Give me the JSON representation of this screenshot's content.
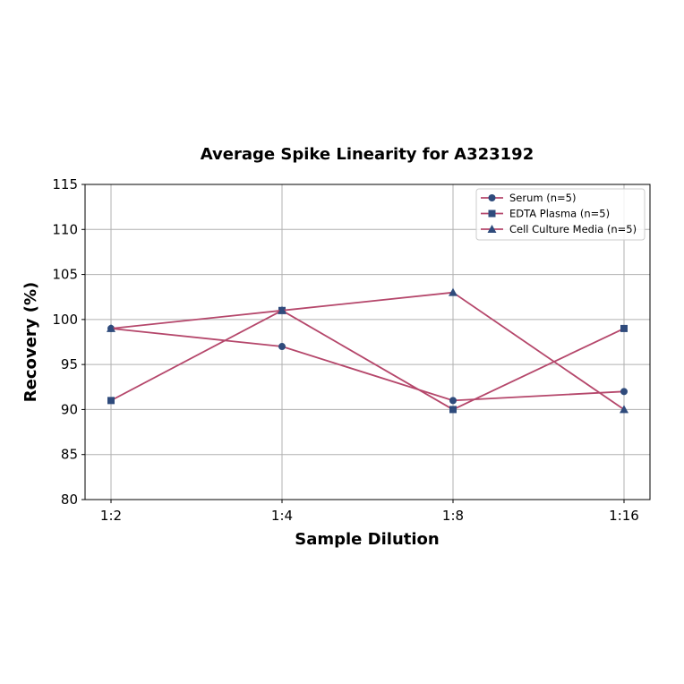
{
  "chart_data": {
    "type": "line",
    "title": "Average Spike Linearity for A323192",
    "xlabel": "Sample Dilution",
    "ylabel": "Recovery (%)",
    "categories": [
      "1:2",
      "1:4",
      "1:8",
      "1:16"
    ],
    "ylim": [
      80,
      115
    ],
    "yticks": [
      80,
      85,
      90,
      95,
      100,
      105,
      110,
      115
    ],
    "grid": true,
    "legend_position": "upper right",
    "line_color": "#b5476b",
    "marker_color": "#2f4b7c",
    "series": [
      {
        "name": "Serum (n=5)",
        "marker": "circle",
        "values": [
          99,
          97,
          91,
          92
        ]
      },
      {
        "name": "EDTA Plasma (n=5)",
        "marker": "square",
        "values": [
          91,
          101,
          90,
          99
        ]
      },
      {
        "name": "Cell Culture Media (n=5)",
        "marker": "triangle",
        "values": [
          99,
          101,
          103,
          90
        ]
      }
    ]
  }
}
